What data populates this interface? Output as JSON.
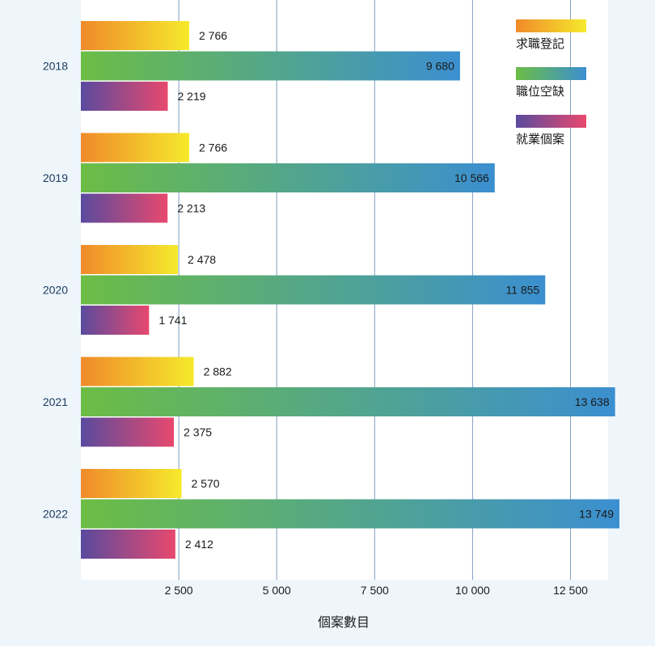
{
  "chart_data": {
    "type": "bar",
    "orientation": "horizontal",
    "categories": [
      "2018",
      "2019",
      "2020",
      "2021",
      "2022"
    ],
    "series": [
      {
        "name": "求職登記",
        "values": [
          2766,
          2766,
          2478,
          2882,
          2570
        ],
        "value_labels": [
          "2 766",
          "2 766",
          "2 478",
          "2 882",
          "2 570"
        ]
      },
      {
        "name": "職位空缺",
        "values": [
          9680,
          10566,
          11855,
          13638,
          13749
        ],
        "value_labels": [
          "9 680",
          "10 566",
          "11 855",
          "13 638",
          "13 749"
        ]
      },
      {
        "name": "就業個案",
        "values": [
          2219,
          2213,
          1741,
          2375,
          2412
        ],
        "value_labels": [
          "2 219",
          "2 213",
          "1 741",
          "2 375",
          "2 412"
        ]
      }
    ],
    "xlabel": "個案數目",
    "ylabel": "",
    "xlim": [
      0,
      14000
    ],
    "x_ticks": [
      2500,
      5000,
      7500,
      10000,
      12500
    ],
    "x_tick_labels": [
      "2 500",
      "5 000",
      "7 500",
      "10  000",
      "12  500"
    ],
    "grid": "vertical",
    "legend_position": "top-right",
    "colors": {
      "page_bg": "#eef6fc",
      "plot_bg": "#ffffff",
      "grid": "#7f9fbf",
      "text": "#1a1a1a",
      "category_text": "#1b3a5c",
      "s0_start": "#f08a2a",
      "s0_end": "#f5ea2c",
      "s1_start": "#6cbd45",
      "s1_end": "#3b8fd0",
      "s2_start": "#5a4a9e",
      "s2_end": "#e8496e"
    }
  }
}
